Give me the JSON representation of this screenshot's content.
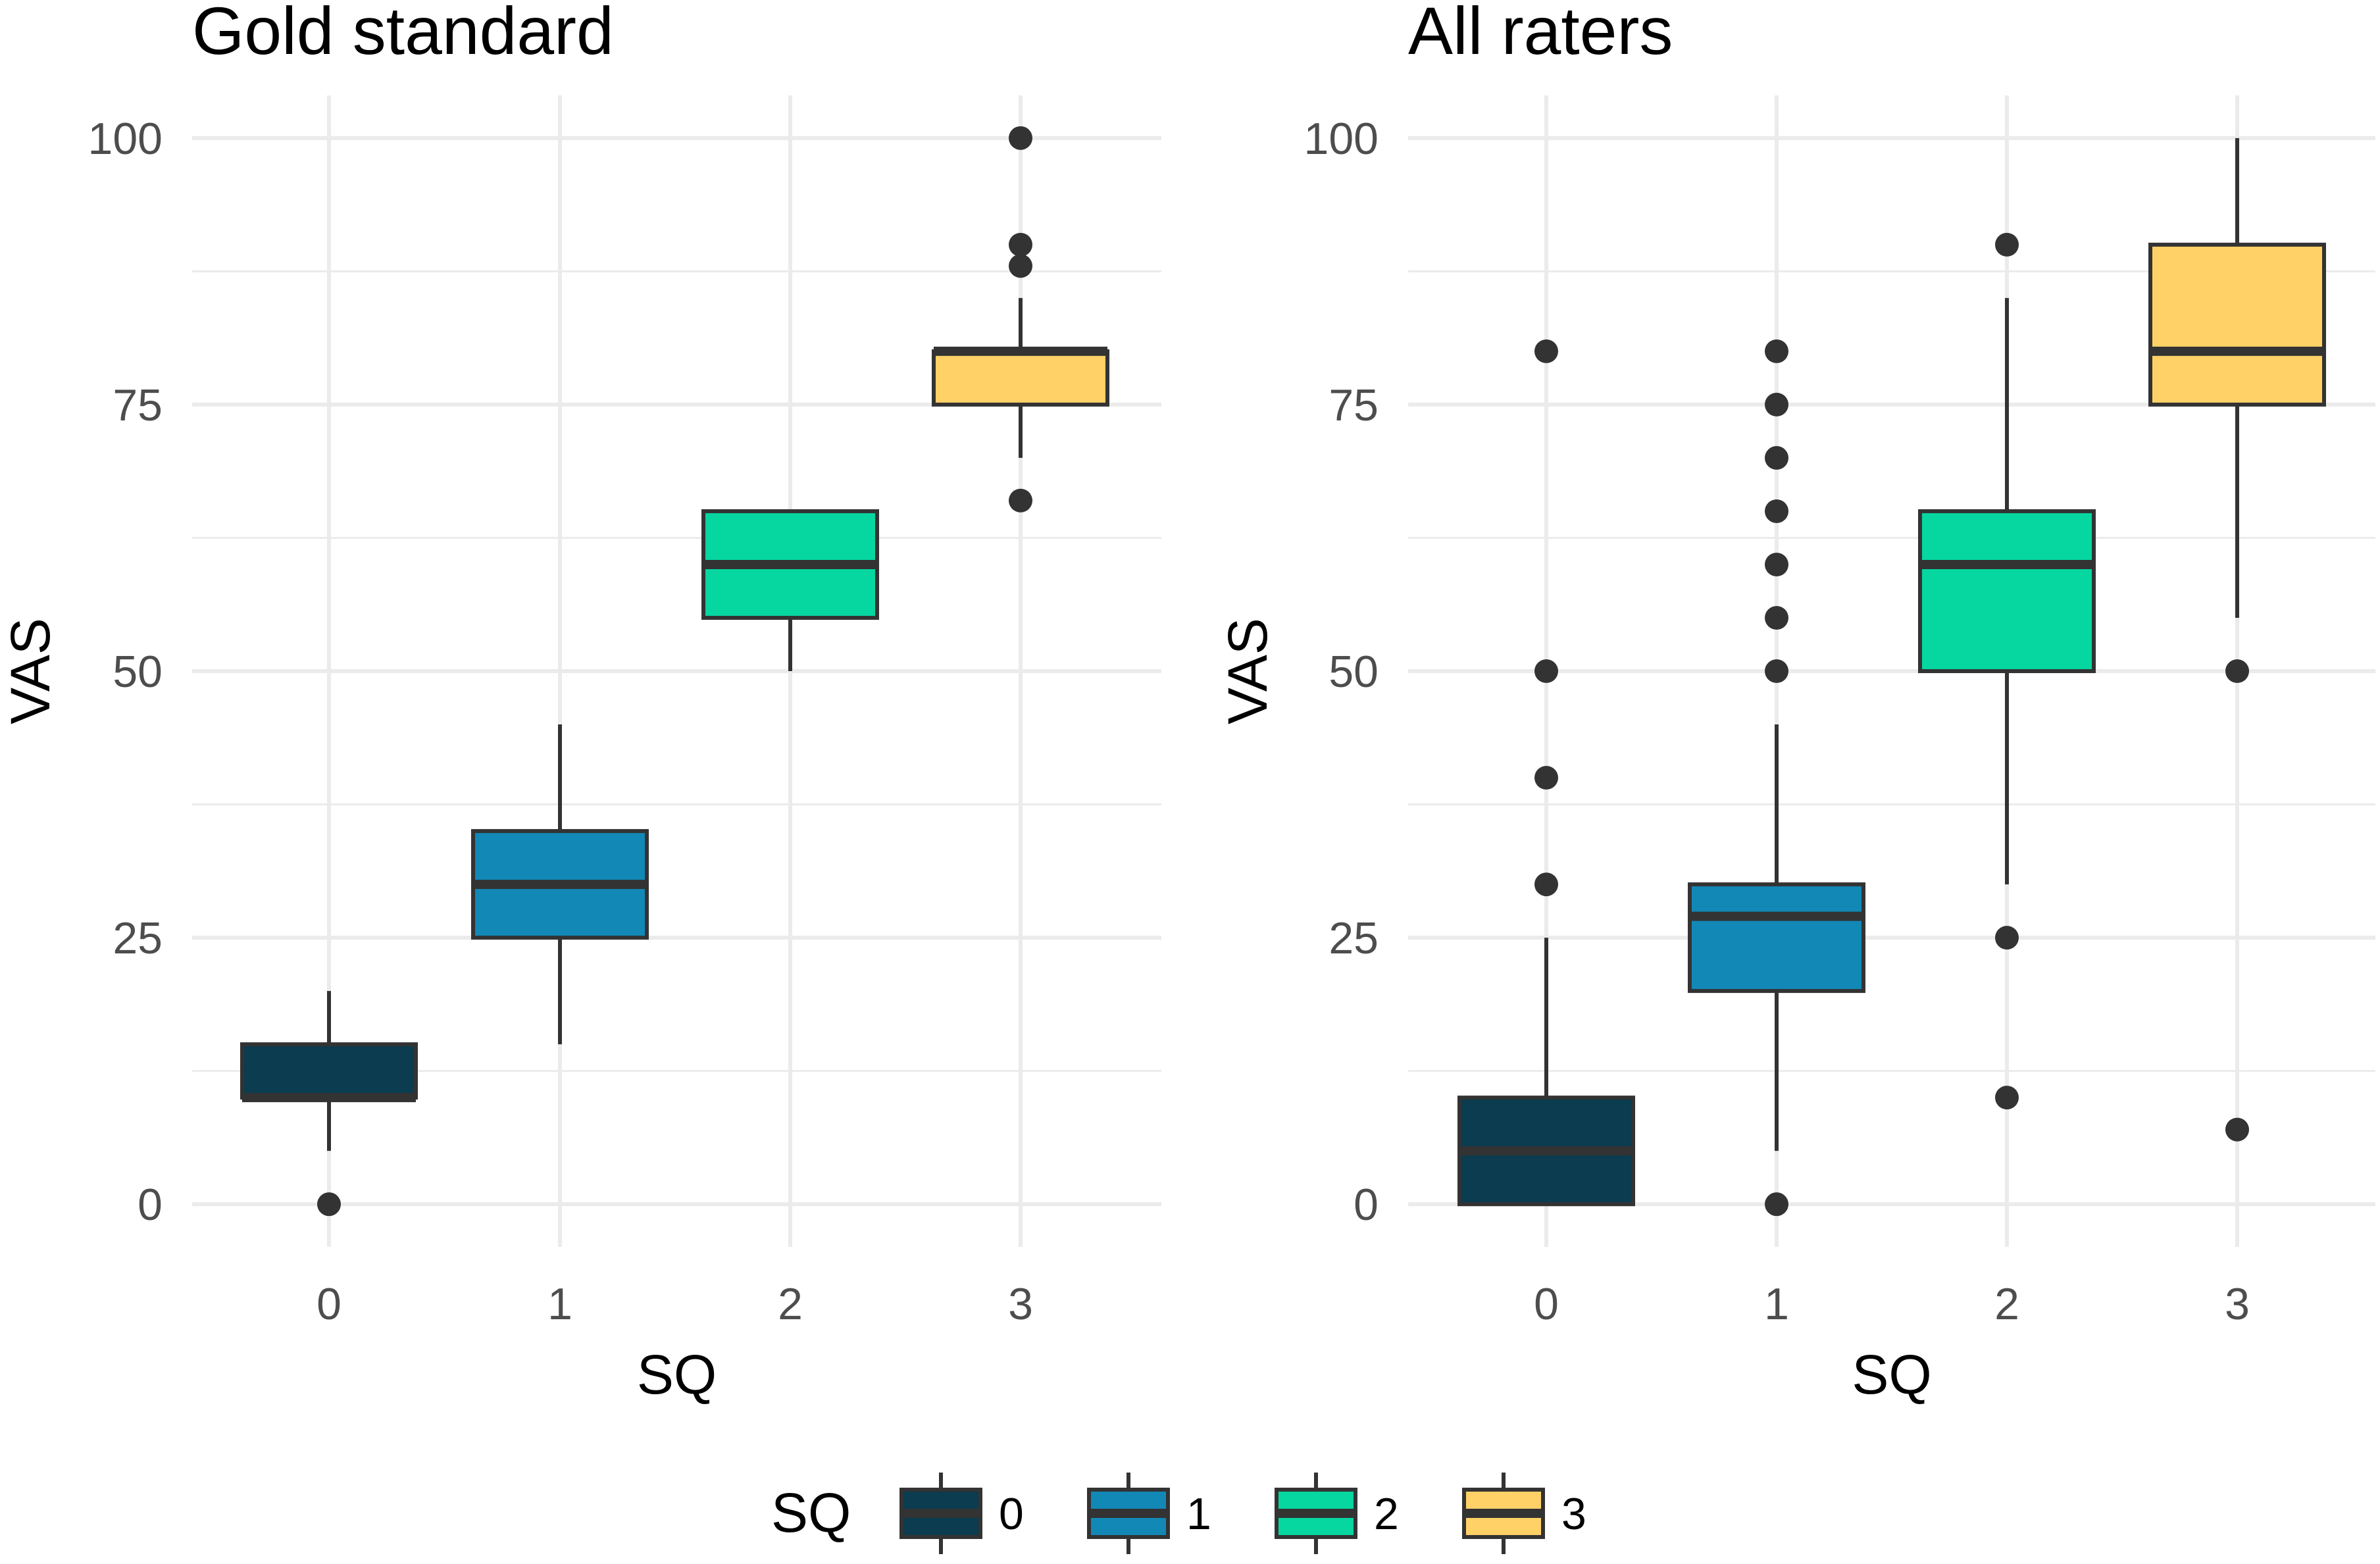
{
  "chart_data": [
    {
      "type": "boxplot",
      "title": "Gold standard",
      "xlabel": "SQ",
      "ylabel": "VAS",
      "categories": [
        "0",
        "1",
        "2",
        "3"
      ],
      "yticks": [
        "0",
        "25",
        "50",
        "75",
        "100"
      ],
      "ylim": [
        -4,
        104
      ],
      "boxes": [
        {
          "category": "0",
          "whisker_low": 5,
          "q1": 10,
          "median": 10,
          "q3": 15,
          "whisker_high": 20,
          "outliers": [
            0
          ]
        },
        {
          "category": "1",
          "whisker_low": 15,
          "q1": 25,
          "median": 30,
          "q3": 35,
          "whisker_high": 45,
          "outliers": []
        },
        {
          "category": "2",
          "whisker_low": 50,
          "q1": 55,
          "median": 60,
          "q3": 65,
          "whisker_high": 65,
          "outliers": []
        },
        {
          "category": "3",
          "whisker_low": 70,
          "q1": 75,
          "median": 80,
          "q3": 80,
          "whisker_high": 85,
          "outliers": [
            66,
            88,
            90,
            100
          ]
        }
      ]
    },
    {
      "type": "boxplot",
      "title": "All raters",
      "xlabel": "SQ",
      "ylabel": "VAS",
      "categories": [
        "0",
        "1",
        "2",
        "3"
      ],
      "yticks": [
        "0",
        "25",
        "50",
        "75",
        "100"
      ],
      "ylim": [
        -4,
        104
      ],
      "boxes": [
        {
          "category": "0",
          "whisker_low": 0,
          "q1": 0,
          "median": 5,
          "q3": 10,
          "whisker_high": 25,
          "outliers": [
            30,
            40,
            50,
            80
          ]
        },
        {
          "category": "1",
          "whisker_low": 5,
          "q1": 20,
          "median": 27,
          "q3": 30,
          "whisker_high": 45,
          "outliers": [
            0,
            50,
            55,
            60,
            65,
            70,
            75,
            80
          ]
        },
        {
          "category": "2",
          "whisker_low": 30,
          "q1": 50,
          "median": 60,
          "q3": 65,
          "whisker_high": 85,
          "outliers": [
            10,
            25,
            90
          ]
        },
        {
          "category": "3",
          "whisker_low": 55,
          "q1": 75,
          "median": 80,
          "q3": 90,
          "whisker_high": 100,
          "outliers": [
            7,
            50
          ]
        }
      ]
    }
  ],
  "legend": {
    "title": "SQ",
    "position": "bottom",
    "items": [
      {
        "label": "0",
        "color": "#0b3c4f"
      },
      {
        "label": "1",
        "color": "#1288b6"
      },
      {
        "label": "2",
        "color": "#06d6a0"
      },
      {
        "label": "3",
        "color": "#ffd166"
      }
    ]
  }
}
